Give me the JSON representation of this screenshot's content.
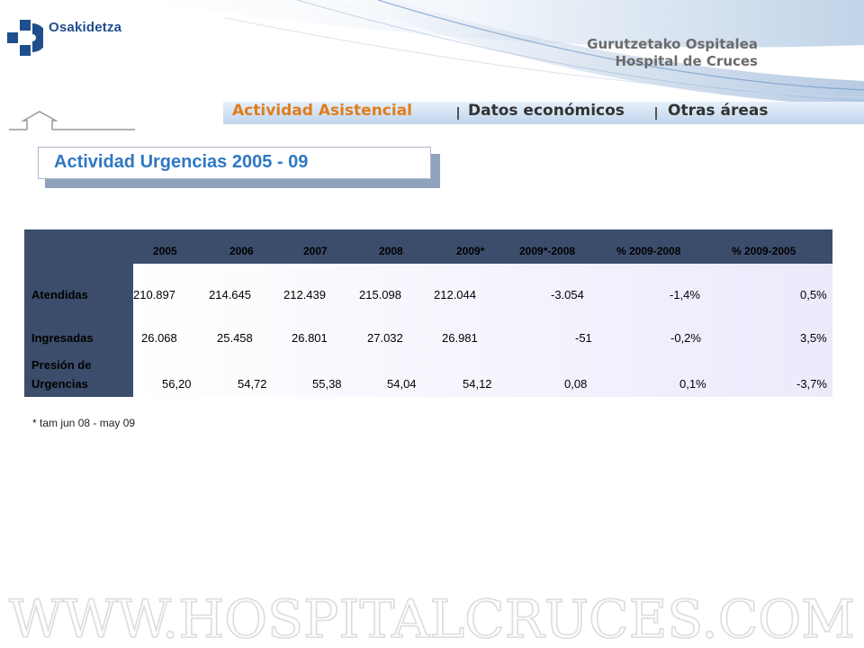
{
  "header": {
    "brand": "Osakidetza",
    "hospital_line1": "Gurutzetako Ospitalea",
    "hospital_line2": "Hospital de Cruces"
  },
  "nav": {
    "items": [
      {
        "label": "Actividad Asistencial",
        "color": "#e07c1c"
      },
      {
        "label": "Datos económicos",
        "color": "#333333"
      },
      {
        "label": "Otras áreas",
        "color": "#333333"
      }
    ]
  },
  "page_title": "Actividad Urgencias 2005 - 09",
  "table": {
    "columns": [
      "2005",
      "2006",
      "2007",
      "2008",
      "2009*",
      "2009*-2008",
      "% 2009-2008",
      "% 2009-2005"
    ],
    "rows": [
      {
        "label": "Atendidas",
        "values": [
          "210.897",
          "214.645",
          "212.439",
          "215.098",
          "212.044",
          "-3.054",
          "-1,4%",
          "0,5%"
        ]
      },
      {
        "label": "Ingresadas",
        "values": [
          "26.068",
          "25.458",
          "26.801",
          "27.032",
          "26.981",
          "-51",
          "-0,2%",
          "3,5%"
        ]
      },
      {
        "label_line1": "Presión de",
        "label_line2": "Urgencias",
        "values": [
          "56,20",
          "54,72",
          "55,38",
          "54,04",
          "54,12",
          "0,08",
          "0,1%",
          "-3,7%"
        ]
      }
    ]
  },
  "footnote": "* tam jun 08 - may 09",
  "watermark": "WWW.HOSPITALCRUCES.COM",
  "colors": {
    "table_header": "#3c4d6b",
    "title_text": "#2f78c3",
    "nav_active": "#e07c1c",
    "brand_blue": "#1f4e8c"
  }
}
